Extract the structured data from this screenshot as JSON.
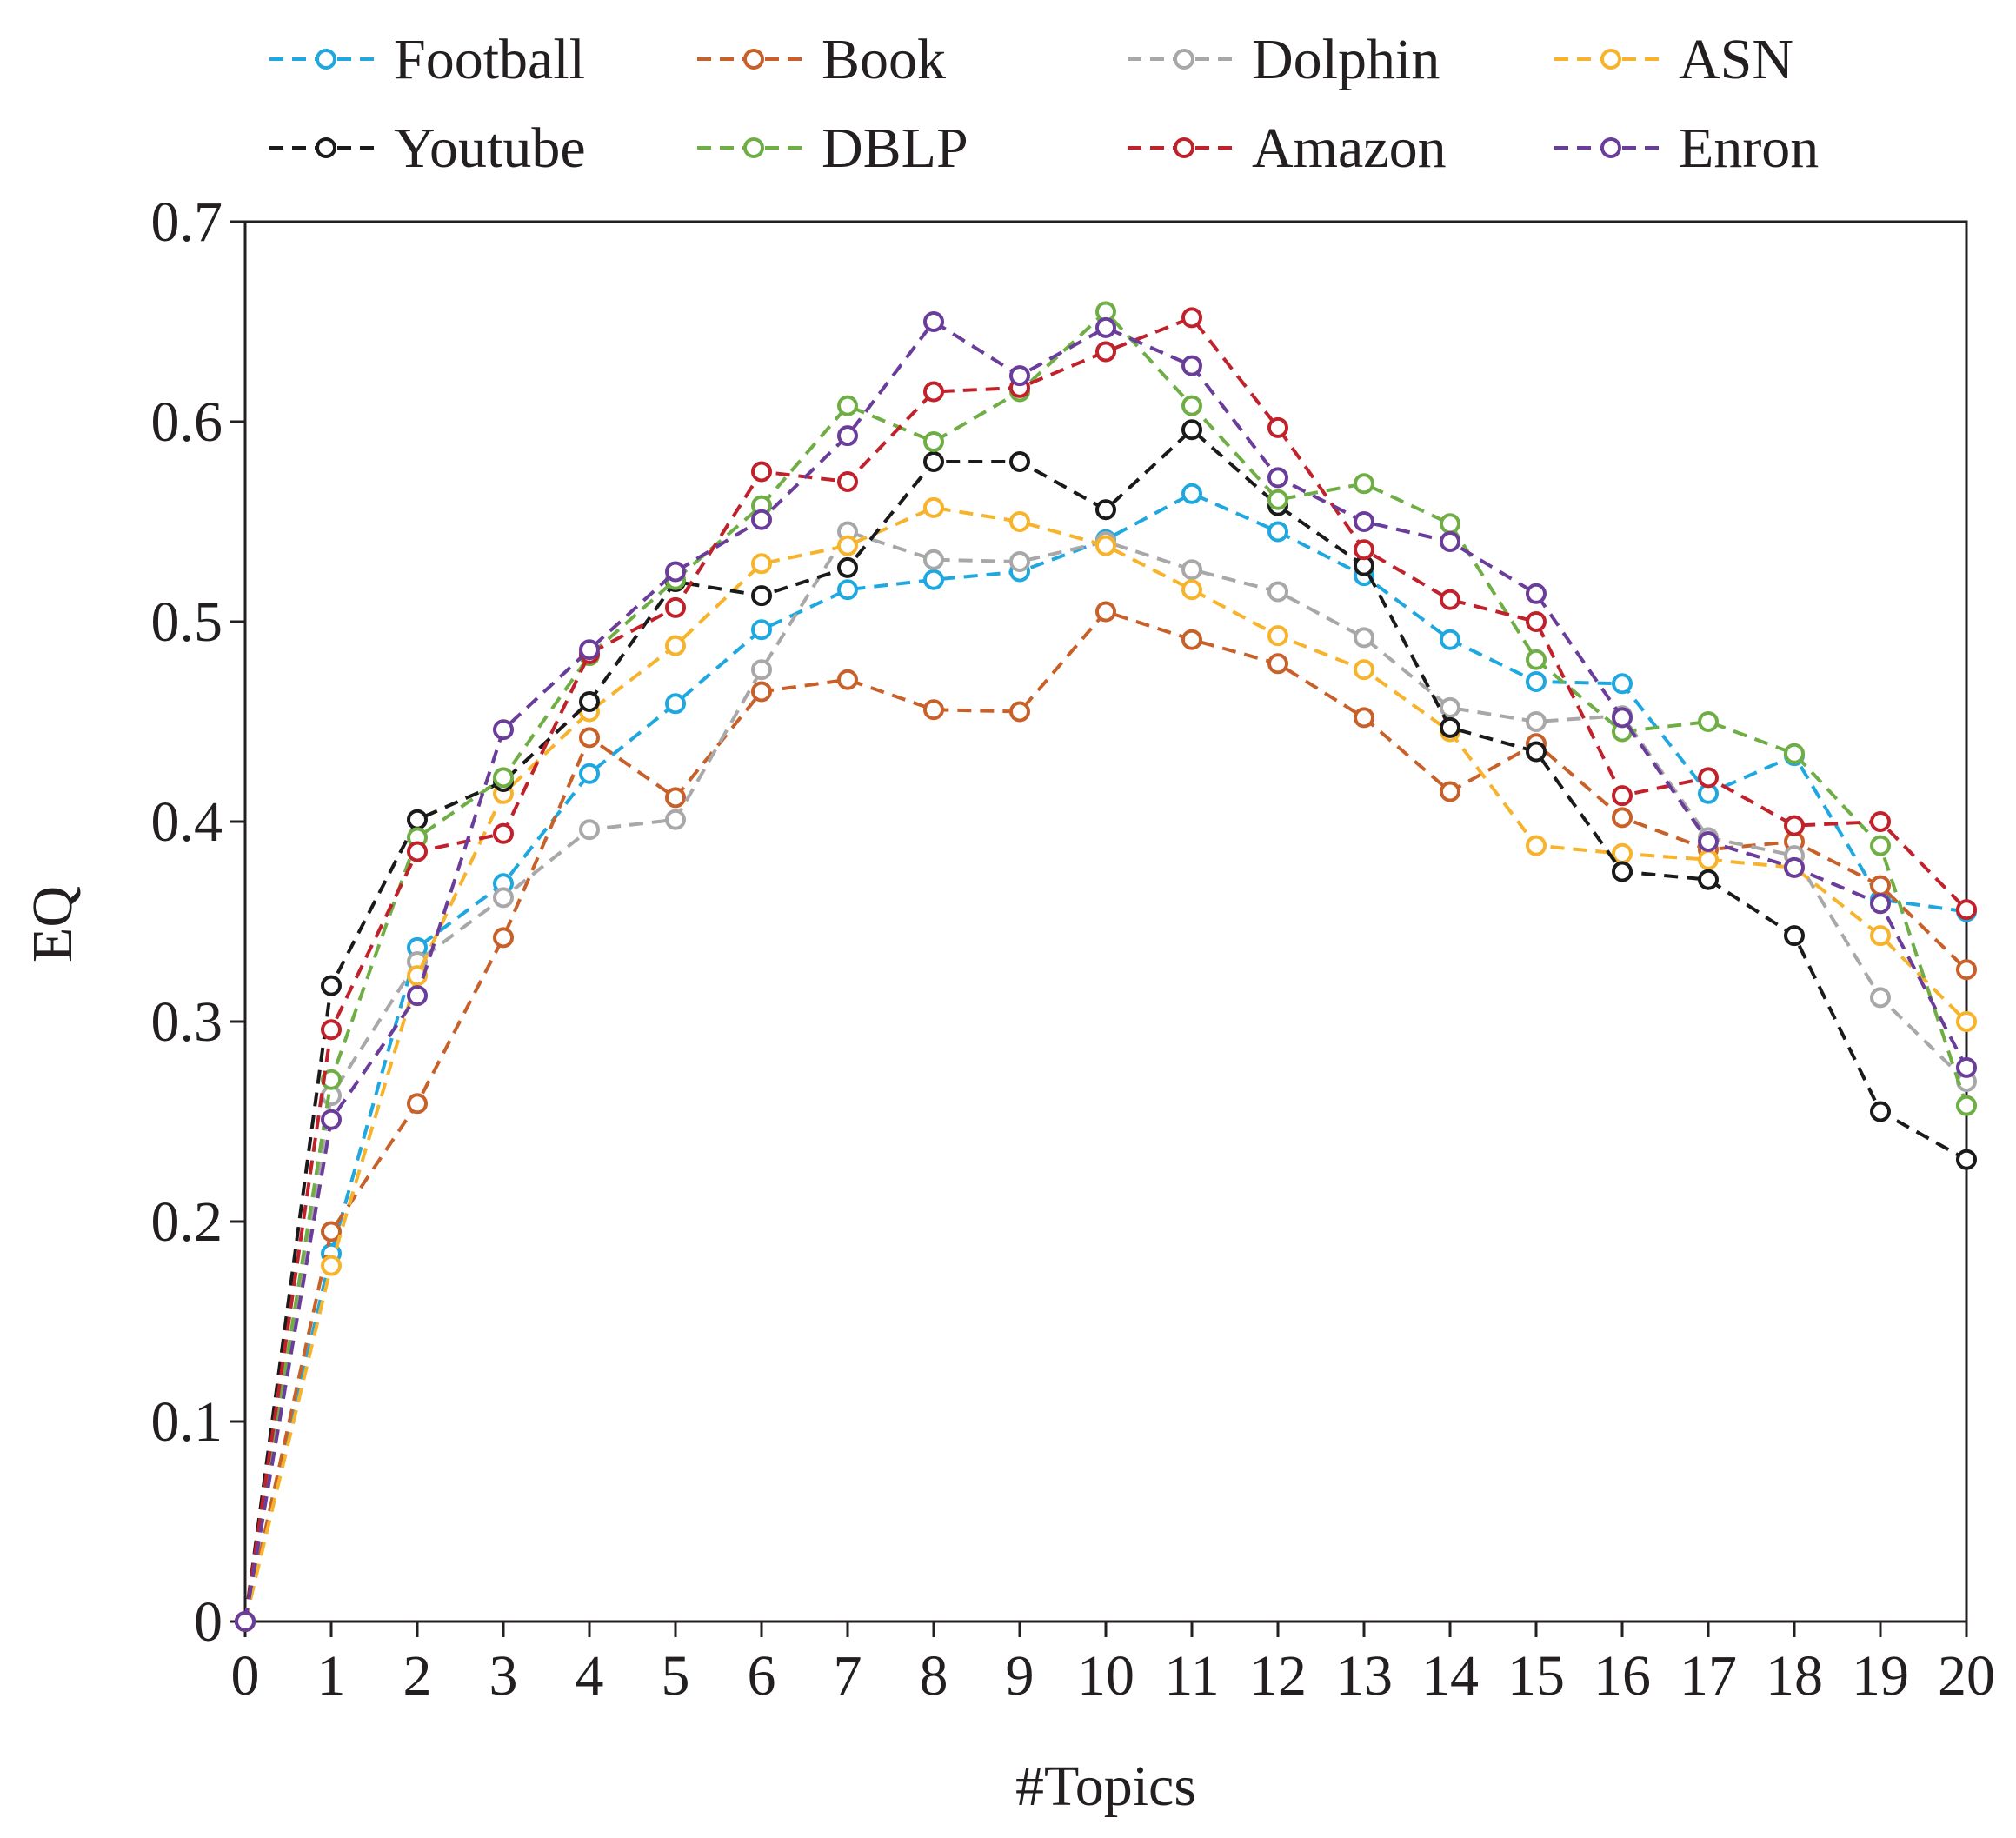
{
  "chart_data": {
    "type": "line",
    "title": "",
    "xlabel": "#Topics",
    "ylabel": "EQ",
    "xlim": [
      0,
      20
    ],
    "ylim": [
      0,
      0.7
    ],
    "x": [
      0,
      1,
      2,
      3,
      4,
      5,
      6,
      7,
      8,
      9,
      10,
      11,
      12,
      13,
      14,
      15,
      16,
      17,
      18,
      19,
      20
    ],
    "x_tick_labels": [
      "0",
      "1",
      "2",
      "3",
      "4",
      "5",
      "6",
      "7",
      "8",
      "9",
      "10",
      "11",
      "12",
      "13",
      "14",
      "15",
      "16",
      "17",
      "18",
      "19",
      "20"
    ],
    "y_ticks": [
      0,
      0.1,
      0.2,
      0.3,
      0.4,
      0.5,
      0.6,
      0.7
    ],
    "y_tick_labels": [
      "0",
      "0.1",
      "0.2",
      "0.3",
      "0.4",
      "0.5",
      "0.6",
      "0.7"
    ],
    "legend_position": "top",
    "grid": false,
    "series": [
      {
        "name": "Football",
        "color": "#1fa8e0",
        "values": [
          0,
          0.184,
          0.337,
          0.369,
          0.424,
          0.459,
          0.496,
          0.516,
          0.521,
          0.525,
          0.541,
          0.564,
          0.545,
          0.523,
          0.491,
          0.47,
          0.469,
          0.414,
          0.433,
          0.361,
          0.355
        ]
      },
      {
        "name": "Book",
        "color": "#c8602a",
        "values": [
          0,
          0.195,
          0.259,
          0.342,
          0.442,
          0.412,
          0.465,
          0.471,
          0.456,
          0.455,
          0.505,
          0.491,
          0.479,
          0.452,
          0.415,
          0.439,
          0.402,
          0.386,
          0.39,
          0.368,
          0.326
        ]
      },
      {
        "name": "Dolphin",
        "color": "#a8a8a8",
        "values": [
          0,
          0.263,
          0.33,
          0.362,
          0.396,
          0.401,
          0.476,
          0.545,
          0.531,
          0.53,
          0.54,
          0.526,
          0.515,
          0.492,
          0.457,
          0.45,
          0.453,
          0.392,
          0.383,
          0.312,
          0.27
        ]
      },
      {
        "name": "ASN",
        "color": "#f7b32b",
        "values": [
          0,
          0.178,
          0.323,
          0.414,
          0.455,
          0.488,
          0.529,
          0.538,
          0.557,
          0.55,
          0.538,
          0.516,
          0.493,
          0.476,
          0.445,
          0.388,
          0.384,
          0.381,
          0.377,
          0.343,
          0.3
        ]
      },
      {
        "name": "Youtube",
        "color": "#1a1a1a",
        "values": [
          0,
          0.318,
          0.401,
          0.42,
          0.46,
          0.52,
          0.513,
          0.527,
          0.58,
          0.58,
          0.556,
          0.596,
          0.558,
          0.528,
          0.447,
          0.435,
          0.375,
          0.371,
          0.343,
          0.255,
          0.231
        ]
      },
      {
        "name": "DBLP",
        "color": "#6fae45",
        "values": [
          0,
          0.271,
          0.392,
          0.422,
          0.483,
          0.521,
          0.558,
          0.608,
          0.59,
          0.615,
          0.655,
          0.608,
          0.561,
          0.569,
          0.549,
          0.481,
          0.445,
          0.45,
          0.434,
          0.388,
          0.258
        ]
      },
      {
        "name": "Amazon",
        "color": "#c0212b",
        "values": [
          0,
          0.296,
          0.385,
          0.394,
          0.484,
          0.507,
          0.575,
          0.57,
          0.615,
          0.617,
          0.635,
          0.652,
          0.597,
          0.536,
          0.511,
          0.5,
          0.413,
          0.422,
          0.398,
          0.4,
          0.356
        ]
      },
      {
        "name": "Enron",
        "color": "#6a3d9a",
        "values": [
          0,
          0.251,
          0.313,
          0.446,
          0.486,
          0.525,
          0.551,
          0.593,
          0.65,
          0.623,
          0.647,
          0.628,
          0.572,
          0.55,
          0.54,
          0.514,
          0.452,
          0.39,
          0.377,
          0.359,
          0.277
        ]
      }
    ]
  }
}
